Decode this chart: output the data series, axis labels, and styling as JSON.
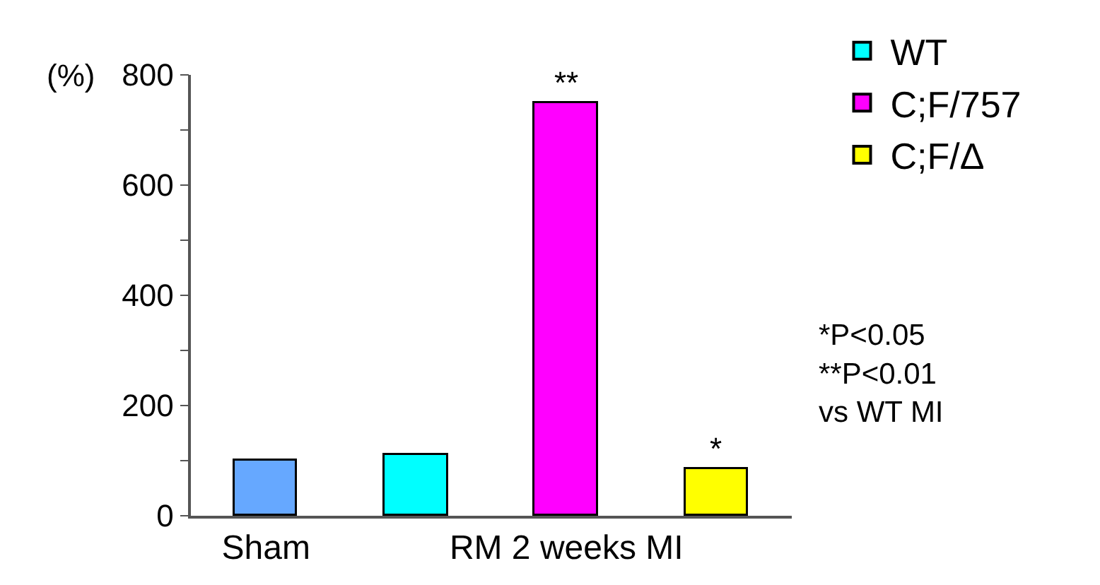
{
  "chart_data": {
    "type": "bar",
    "ylabel": "(%)",
    "categories": [
      "Sham",
      null,
      "RM 2 weeks MI",
      null
    ],
    "series": [
      {
        "color": "#66a8ff",
        "values": [
          100,
          null,
          null,
          null
        ]
      },
      {
        "name": "WT",
        "color": "#00ffff",
        "values": [
          null,
          110,
          null,
          null
        ]
      },
      {
        "name": "C;F/757",
        "color": "#ff00ff",
        "values": [
          null,
          null,
          750,
          null
        ]
      },
      {
        "name": "C;F/Δ",
        "color": "#ffff00",
        "values": [
          null,
          null,
          null,
          85
        ]
      }
    ],
    "ylim": [
      0,
      800
    ],
    "yticks": [
      0,
      {
        "value": 100,
        "label": null
      },
      200,
      {
        "value": 300,
        "label": null
      },
      400,
      {
        "value": 500,
        "label": null
      },
      600,
      {
        "value": 700,
        "label": null
      },
      800
    ],
    "grid": false,
    "legend": "top right",
    "annotations": [
      {
        "text": "**",
        "y": 750
      },
      {
        "text": "*",
        "y": 85
      },
      "*P<0.05\n**P<0.01\nvs WT MI"
    ]
  }
}
